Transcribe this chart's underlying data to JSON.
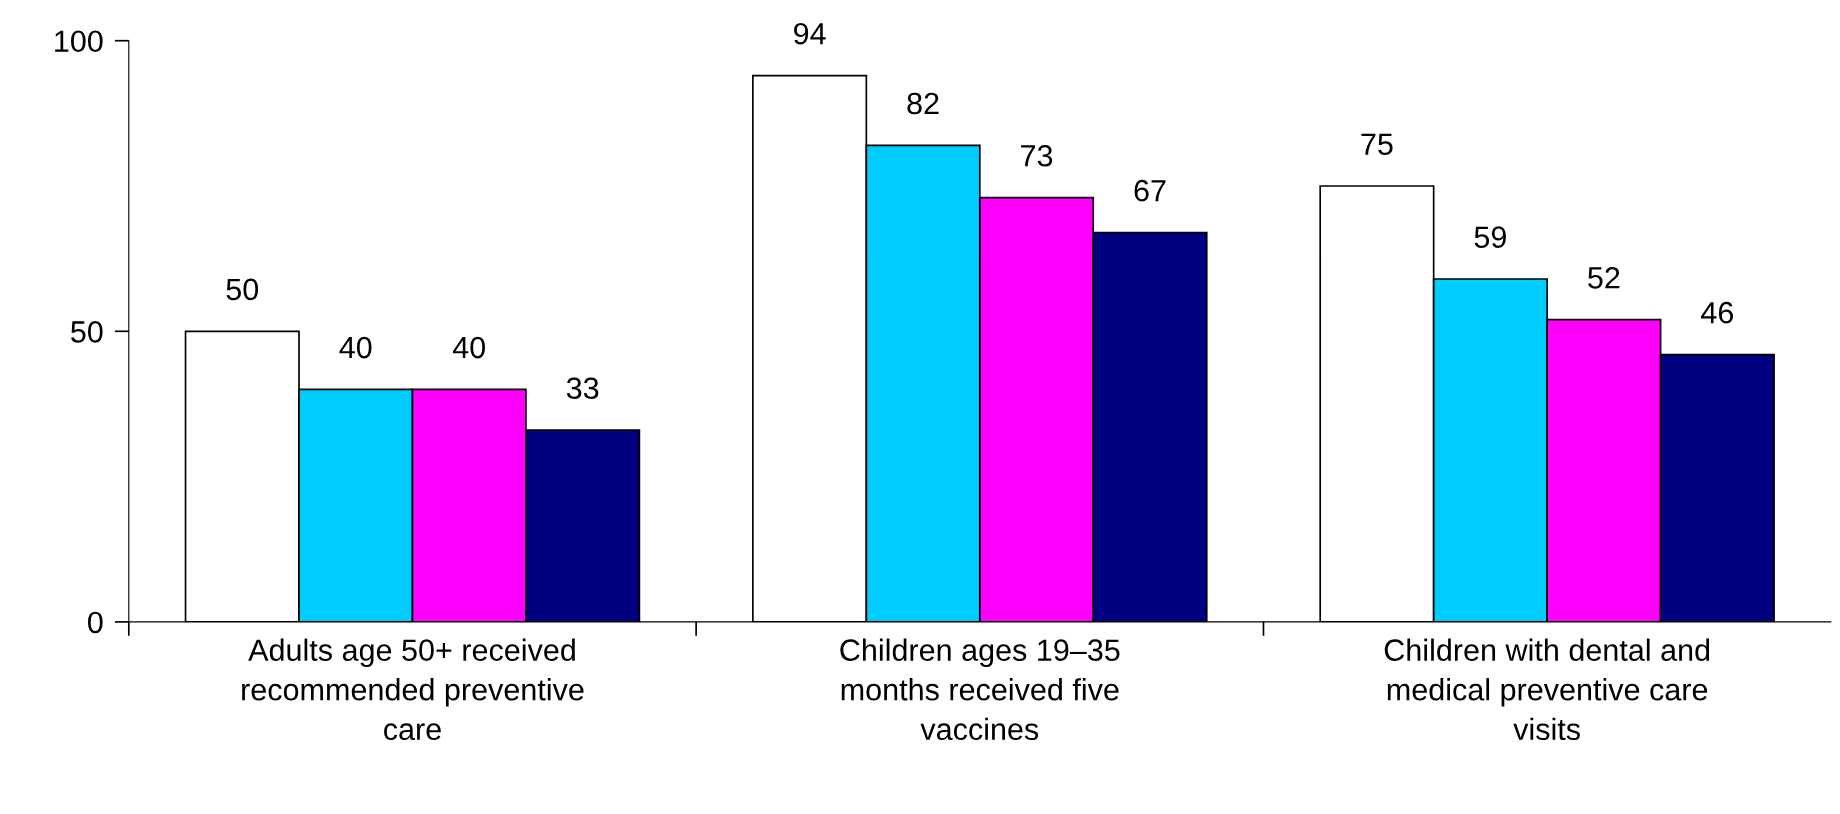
{
  "chart_data": {
    "type": "bar",
    "categories": [
      "Adults age 50+ received\nrecommended preventive\ncare",
      "Children ages 19–35\nmonths received five\nvaccines",
      "Children with dental and\nmedical preventive care\nvisits"
    ],
    "series": [
      {
        "color": "#ffffff",
        "values": [
          50,
          94,
          75
        ]
      },
      {
        "color": "#00ccff",
        "values": [
          40,
          82,
          59
        ]
      },
      {
        "color": "#ff00ff",
        "values": [
          40,
          73,
          52
        ]
      },
      {
        "color": "#000080",
        "values": [
          33,
          67,
          46
        ]
      }
    ],
    "ylim": [
      0,
      100
    ],
    "yticks": [
      0,
      50,
      100
    ],
    "data_labels": true,
    "grid": false,
    "legend": false
  }
}
